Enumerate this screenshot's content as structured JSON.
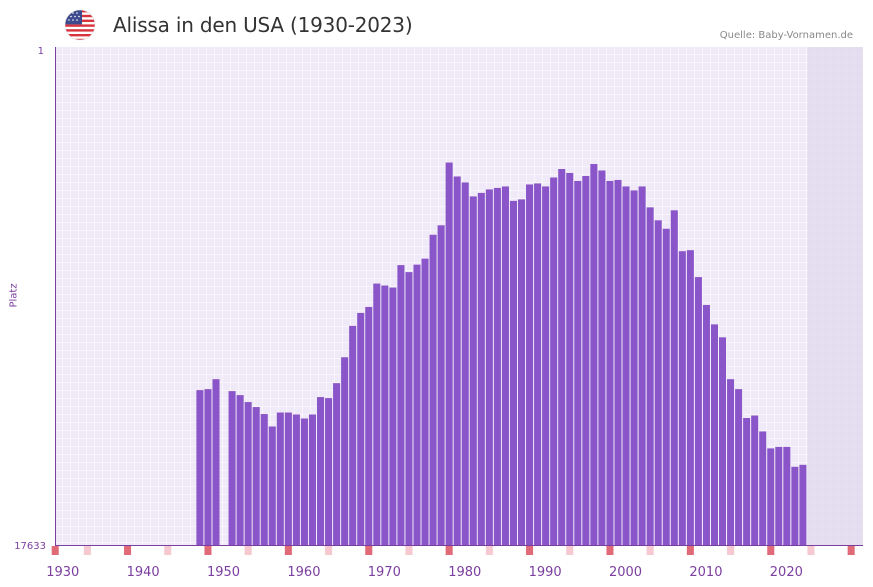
{
  "header": {
    "title": "Alissa in den USA (1930-2023)",
    "source": "Quelle: Baby-Vornamen.de",
    "flag_icon": "us-flag-icon"
  },
  "colors": {
    "bar": "#8a55c8",
    "axis": "#7b3fa0",
    "grid_bg": "#efe9f8",
    "future_bg": "#e2dcec",
    "tick_strong": "#e06a78",
    "tick_light": "#f6c8d0"
  },
  "chart_data": {
    "type": "bar",
    "title": "Alissa in den USA (1930-2023)",
    "ylabel": "Platz",
    "y_axis_top_label": "1",
    "y_axis_bottom_label": "17633",
    "y_reversed": true,
    "x_tick_labels": [
      "1930",
      "1940",
      "1950",
      "1960",
      "1970",
      "1980",
      "1990",
      "2000",
      "2010",
      "2020"
    ],
    "x_range": [
      1929,
      2029
    ],
    "data_end_year": 2022,
    "value_unit": "relative bar height (0 = rank 17633, 1 = rank 1)",
    "years": [
      1947,
      1948,
      1949,
      1951,
      1952,
      1953,
      1954,
      1955,
      1956,
      1957,
      1958,
      1959,
      1960,
      1961,
      1962,
      1963,
      1964,
      1965,
      1966,
      1967,
      1968,
      1969,
      1970,
      1971,
      1972,
      1973,
      1974,
      1975,
      1976,
      1977,
      1978,
      1979,
      1980,
      1981,
      1982,
      1983,
      1984,
      1985,
      1986,
      1987,
      1988,
      1989,
      1990,
      1991,
      1992,
      1993,
      1994,
      1995,
      1996,
      1997,
      1998,
      1999,
      2000,
      2001,
      2002,
      2003,
      2004,
      2005,
      2006,
      2007,
      2008,
      2009,
      2010,
      2011,
      2012,
      2013,
      2014,
      2015,
      2016,
      2017,
      2018,
      2019,
      2020,
      2021,
      2022
    ],
    "values": [
      0.311,
      0.313,
      0.333,
      0.309,
      0.301,
      0.287,
      0.277,
      0.263,
      0.238,
      0.266,
      0.266,
      0.262,
      0.254,
      0.262,
      0.297,
      0.295,
      0.325,
      0.377,
      0.44,
      0.466,
      0.478,
      0.525,
      0.521,
      0.517,
      0.562,
      0.548,
      0.563,
      0.575,
      0.623,
      0.642,
      0.768,
      0.74,
      0.728,
      0.7,
      0.707,
      0.714,
      0.717,
      0.72,
      0.691,
      0.694,
      0.724,
      0.726,
      0.72,
      0.738,
      0.755,
      0.747,
      0.731,
      0.741,
      0.765,
      0.752,
      0.731,
      0.733,
      0.72,
      0.712,
      0.72,
      0.678,
      0.652,
      0.635,
      0.672,
      0.59,
      0.592,
      0.538,
      0.482,
      0.443,
      0.417,
      0.333,
      0.313,
      0.255,
      0.26,
      0.228,
      0.194,
      0.197,
      0.197,
      0.157,
      0.161
    ]
  }
}
